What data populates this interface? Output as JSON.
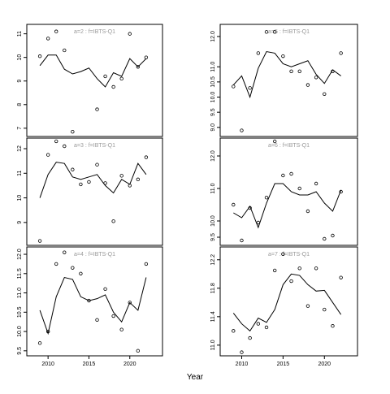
{
  "xlabel": "Year",
  "chart_data": [
    {
      "type": "line",
      "title": "a=2 : f=IBTS-Q1",
      "x": [
        2009,
        2010,
        2011,
        2012,
        2013,
        2014,
        2015,
        2016,
        2017,
        2018,
        2019,
        2020,
        2021,
        2022
      ],
      "xlim": [
        2007.4,
        2024
      ],
      "ylim": [
        6.65,
        11.4
      ],
      "yticks": [
        7,
        8,
        9,
        10,
        11
      ],
      "series": [
        {
          "style": "points",
          "color": "#000000",
          "values": [
            10.05,
            10.8,
            11.1,
            10.3,
            6.85,
            null,
            null,
            7.8,
            9.2,
            8.75,
            9.1,
            11.0,
            9.6,
            10.0
          ]
        },
        {
          "style": "line",
          "color": "#000000",
          "values": [
            9.65,
            10.1,
            10.1,
            9.5,
            9.3,
            9.4,
            9.55,
            9.1,
            8.75,
            9.35,
            9.2,
            9.95,
            9.6,
            9.95
          ]
        }
      ]
    },
    {
      "type": "line",
      "title": "a=3 : f=IBTS-Q1",
      "x": [
        2009,
        2010,
        2011,
        2012,
        2013,
        2014,
        2015,
        2016,
        2017,
        2018,
        2019,
        2020,
        2021,
        2022
      ],
      "xlim": [
        2007.4,
        2024
      ],
      "ylim": [
        8.07,
        12.43
      ],
      "yticks": [
        9,
        10,
        11,
        12
      ],
      "series": [
        {
          "style": "points",
          "color": "#000000",
          "values": [
            8.25,
            11.75,
            12.3,
            12.1,
            11.15,
            10.55,
            10.65,
            11.35,
            10.6,
            9.05,
            10.9,
            10.5,
            10.75,
            11.65
          ]
        },
        {
          "style": "line",
          "color": "#000000",
          "values": [
            10.0,
            10.95,
            11.45,
            11.4,
            10.85,
            10.75,
            10.85,
            10.95,
            10.5,
            10.2,
            10.75,
            10.55,
            11.4,
            10.95
          ]
        }
      ]
    },
    {
      "type": "line",
      "title": "a=4 : f=IBTS-Q1",
      "x": [
        2009,
        2010,
        2011,
        2012,
        2013,
        2014,
        2015,
        2016,
        2017,
        2018,
        2019,
        2020,
        2021,
        2022
      ],
      "xlim": [
        2007.4,
        2024
      ],
      "ylim": [
        9.37,
        12.19
      ],
      "xticks": [
        2010,
        2015,
        2020
      ],
      "yticks": [
        9.5,
        {
          "value": 10,
          "label": "10.0"
        },
        10.5,
        {
          "value": 11,
          "label": "11.0"
        },
        11.5,
        {
          "value": 12,
          "label": "12.0"
        }
      ],
      "series": [
        {
          "style": "points",
          "color": "#000000",
          "values": [
            9.7,
            10.0,
            11.75,
            12.05,
            11.65,
            11.5,
            10.8,
            10.3,
            11.1,
            10.4,
            10.05,
            10.75,
            9.5,
            11.75
          ]
        },
        {
          "style": "line",
          "color": "#000000",
          "values": [
            10.55,
            9.95,
            10.9,
            11.4,
            11.35,
            10.9,
            10.8,
            10.85,
            10.95,
            10.5,
            10.25,
            10.75,
            10.55,
            11.4
          ]
        }
      ]
    },
    {
      "type": "line",
      "title": "a=5 : f=IBTS-Q1",
      "x": [
        2009,
        2010,
        2011,
        2012,
        2013,
        2014,
        2015,
        2016,
        2017,
        2018,
        2019,
        2020,
        2021,
        2022
      ],
      "xlim": [
        2007.4,
        2024
      ],
      "ylim": [
        8.7,
        12.4
      ],
      "yticks": [
        {
          "value": 9,
          "label": "9.0"
        },
        9.5,
        {
          "value": 10,
          "label": "10.0"
        },
        10.5,
        {
          "value": 11,
          "label": "11.0"
        },
        {
          "value": 12,
          "label": "12.0"
        }
      ],
      "series": [
        {
          "style": "points",
          "color": "#000000",
          "values": [
            10.35,
            8.9,
            10.3,
            11.45,
            12.15,
            12.15,
            11.35,
            10.85,
            10.85,
            10.4,
            10.65,
            10.1,
            10.85,
            11.45
          ]
        },
        {
          "style": "line",
          "color": "#000000",
          "values": [
            10.4,
            10.7,
            10.0,
            10.95,
            11.5,
            11.45,
            11.1,
            11.0,
            11.1,
            11.2,
            10.75,
            10.45,
            10.9,
            10.7
          ]
        }
      ]
    },
    {
      "type": "line",
      "title": "a=6 : f=IBTS-Q1",
      "x": [
        2009,
        2010,
        2011,
        2012,
        2013,
        2014,
        2015,
        2016,
        2017,
        2018,
        2019,
        2020,
        2021,
        2022
      ],
      "xlim": [
        2007.4,
        2024
      ],
      "ylim": [
        9.25,
        12.55
      ],
      "yticks": [
        9.5,
        {
          "value": 10,
          "label": "10.0"
        },
        {
          "value": 11,
          "label": "11.0"
        },
        {
          "value": 12,
          "label": "12.0"
        }
      ],
      "series": [
        {
          "style": "points",
          "color": "#000000",
          "values": [
            10.5,
            9.4,
            10.4,
            9.95,
            10.72,
            12.45,
            11.4,
            11.45,
            11.0,
            10.3,
            11.15,
            9.45,
            9.55,
            10.9
          ]
        },
        {
          "style": "line",
          "color": "#000000",
          "values": [
            10.25,
            10.1,
            10.45,
            9.8,
            10.55,
            11.15,
            11.15,
            10.9,
            10.8,
            10.8,
            10.9,
            10.55,
            10.3,
            10.95
          ]
        }
      ]
    },
    {
      "type": "line",
      "title": "a=7 : f=IBTS-Q1",
      "x": [
        2009,
        2010,
        2011,
        2012,
        2013,
        2014,
        2015,
        2016,
        2017,
        2018,
        2019,
        2020,
        2021,
        2022
      ],
      "xlim": [
        2007.4,
        2024
      ],
      "ylim": [
        10.85,
        12.38
      ],
      "xticks": [
        2010,
        2015,
        2020
      ],
      "yticks": [
        {
          "value": 11,
          "label": "11.0"
        },
        11.4,
        11.8,
        12.2
      ],
      "series": [
        {
          "style": "points",
          "color": "#000000",
          "values": [
            11.2,
            10.9,
            11.1,
            11.3,
            11.25,
            12.05,
            12.28,
            11.9,
            12.08,
            11.55,
            12.08,
            11.5,
            11.27,
            11.95
          ]
        },
        {
          "style": "line",
          "color": "#000000",
          "values": [
            11.45,
            11.3,
            11.2,
            11.38,
            11.32,
            11.5,
            11.85,
            12.0,
            11.98,
            11.85,
            11.76,
            11.77,
            11.6,
            11.43
          ]
        }
      ]
    }
  ]
}
